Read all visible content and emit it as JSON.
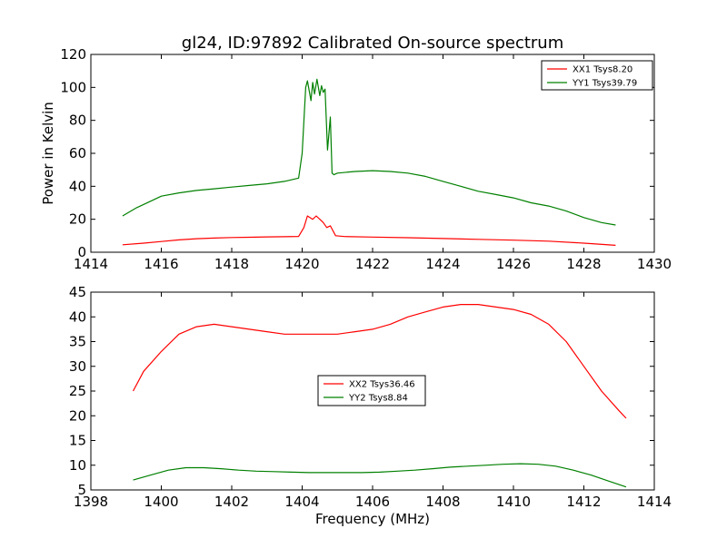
{
  "title": "gl24, ID:97892 Calibrated On-source spectrum",
  "colors": {
    "red": "#ff0000",
    "green": "#008000"
  },
  "chart_data": [
    {
      "type": "line",
      "title": "gl24, ID:97892 Calibrated On-source spectrum",
      "xlabel": "",
      "ylabel": "Power in Kelvin",
      "xlim": [
        1414,
        1430
      ],
      "ylim": [
        0,
        120
      ],
      "xticks": [
        1414,
        1416,
        1418,
        1420,
        1422,
        1424,
        1426,
        1428,
        1430
      ],
      "yticks": [
        0,
        20,
        40,
        60,
        80,
        100,
        120
      ],
      "legend_position": "top-right",
      "grid": false,
      "series": [
        {
          "name": "XX1 Tsys8.20",
          "color": "#ff0000",
          "x": [
            1414.9,
            1415.5,
            1416.0,
            1416.5,
            1417.0,
            1417.5,
            1418.0,
            1418.5,
            1419.0,
            1419.5,
            1419.9,
            1420.05,
            1420.15,
            1420.3,
            1420.4,
            1420.5,
            1420.6,
            1420.7,
            1420.8,
            1420.95,
            1421.2,
            1422.0,
            1423.0,
            1424.0,
            1425.0,
            1426.0,
            1427.0,
            1428.0,
            1428.9
          ],
          "y": [
            4.5,
            5.5,
            6.5,
            7.5,
            8.2,
            8.6,
            8.9,
            9.1,
            9.3,
            9.4,
            9.6,
            15,
            22,
            20,
            22,
            20,
            18,
            15,
            16,
            10,
            9.5,
            9.2,
            8.8,
            8.3,
            7.8,
            7.3,
            6.7,
            5.5,
            4.2
          ]
        },
        {
          "name": "YY1 Tsys39.79",
          "color": "#008000",
          "x": [
            1414.9,
            1415.3,
            1415.7,
            1416.0,
            1416.5,
            1417.0,
            1417.5,
            1418.0,
            1418.5,
            1419.0,
            1419.5,
            1419.9,
            1420.0,
            1420.1,
            1420.15,
            1420.25,
            1420.3,
            1420.35,
            1420.42,
            1420.5,
            1420.55,
            1420.6,
            1420.65,
            1420.72,
            1420.8,
            1420.85,
            1420.9,
            1421.0,
            1421.5,
            1422.0,
            1422.5,
            1423.0,
            1423.5,
            1424.0,
            1424.5,
            1425.0,
            1425.5,
            1426.0,
            1426.5,
            1427.0,
            1427.5,
            1428.0,
            1428.5,
            1428.9
          ],
          "y": [
            22,
            27,
            31,
            34,
            36,
            37.5,
            38.5,
            39.5,
            40.5,
            41.5,
            43,
            45,
            60,
            100,
            104,
            92,
            103,
            96,
            105,
            95,
            101,
            97,
            99,
            62,
            82,
            48,
            47,
            48,
            49,
            49.5,
            49,
            48,
            46,
            43,
            40,
            37,
            35,
            33,
            30,
            28,
            25,
            21,
            18,
            16.5
          ]
        }
      ]
    },
    {
      "type": "line",
      "title": "",
      "xlabel": "Frequency (MHz)",
      "ylabel": "",
      "xlim": [
        1398,
        1414
      ],
      "ylim": [
        5,
        45
      ],
      "xticks": [
        1398,
        1400,
        1402,
        1404,
        1406,
        1408,
        1410,
        1412,
        1414
      ],
      "yticks": [
        5,
        10,
        15,
        20,
        25,
        30,
        35,
        40,
        45
      ],
      "legend_position": "center",
      "grid": false,
      "series": [
        {
          "name": "XX2 Tsys36.46",
          "color": "#ff0000",
          "x": [
            1399.2,
            1399.5,
            1400.0,
            1400.5,
            1401.0,
            1401.5,
            1402.0,
            1402.5,
            1403.0,
            1403.5,
            1404.0,
            1404.5,
            1405.0,
            1405.5,
            1406.0,
            1406.5,
            1407.0,
            1407.5,
            1408.0,
            1408.5,
            1409.0,
            1409.5,
            1410.0,
            1410.5,
            1411.0,
            1411.5,
            1412.0,
            1412.5,
            1413.0,
            1413.2
          ],
          "y": [
            25,
            29,
            33,
            36.5,
            38,
            38.5,
            38,
            37.5,
            37,
            36.5,
            36.5,
            36.5,
            36.5,
            37,
            37.5,
            38.5,
            40,
            41,
            42,
            42.5,
            42.5,
            42,
            41.5,
            40.5,
            38.5,
            35,
            30,
            25,
            21,
            19.5
          ]
        },
        {
          "name": "YY2 Tsys8.84",
          "color": "#008000",
          "x": [
            1399.2,
            1399.7,
            1400.2,
            1400.7,
            1401.2,
            1401.7,
            1402.2,
            1402.7,
            1403.2,
            1403.7,
            1404.2,
            1404.7,
            1405.2,
            1405.7,
            1406.2,
            1406.7,
            1407.2,
            1407.7,
            1408.2,
            1408.7,
            1409.2,
            1409.7,
            1410.2,
            1410.7,
            1411.2,
            1411.7,
            1412.2,
            1412.7,
            1413.2
          ],
          "y": [
            7,
            8,
            9,
            9.5,
            9.5,
            9.3,
            9.0,
            8.8,
            8.7,
            8.6,
            8.5,
            8.5,
            8.5,
            8.5,
            8.6,
            8.8,
            9.0,
            9.3,
            9.6,
            9.8,
            10.0,
            10.2,
            10.3,
            10.2,
            9.8,
            9.0,
            8.0,
            6.8,
            5.6
          ]
        }
      ]
    }
  ]
}
